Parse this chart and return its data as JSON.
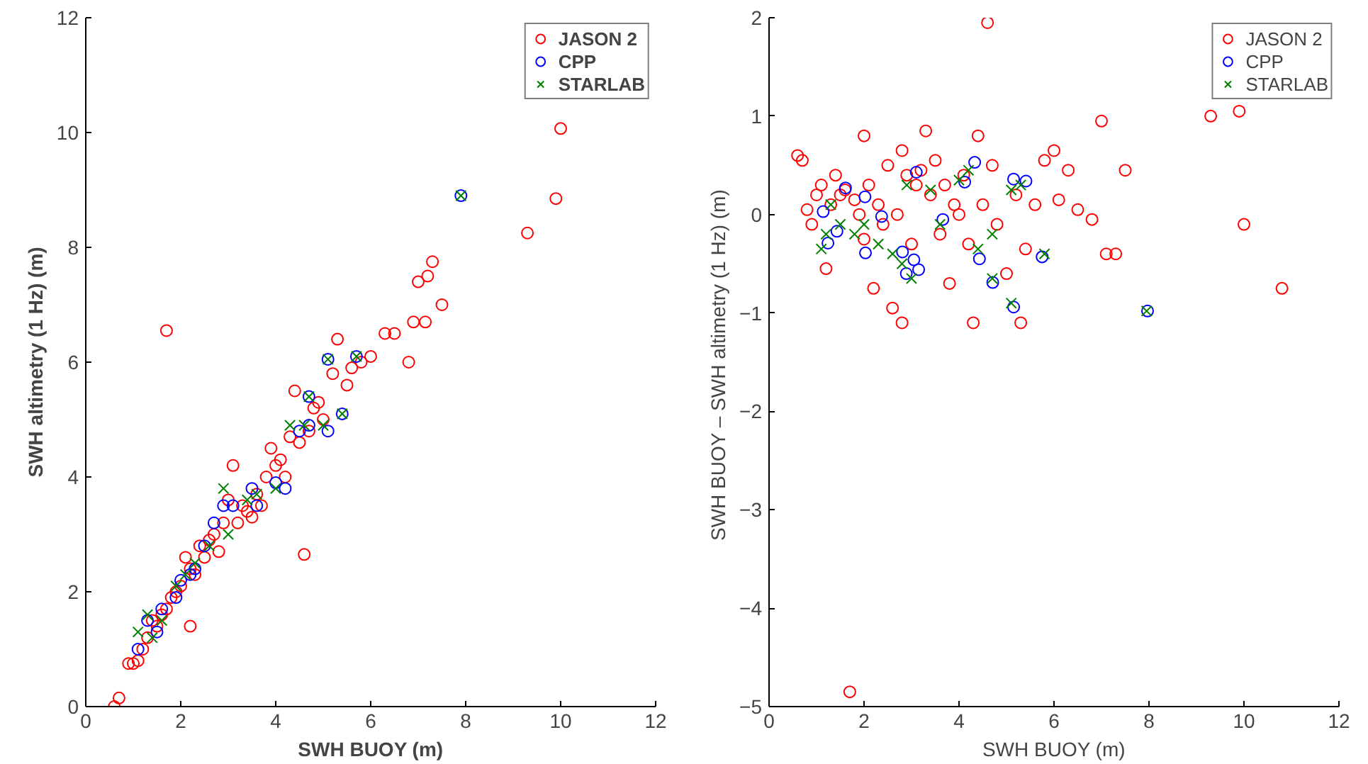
{
  "chart_data": [
    {
      "type": "scatter",
      "xlabel": "SWH BUOY (m)",
      "ylabel": "SWH altimetry (1 Hz) (m)",
      "xlim": [
        0,
        12
      ],
      "ylim": [
        0,
        12
      ],
      "xticks": [
        0,
        2,
        4,
        6,
        8,
        10,
        12
      ],
      "yticks": [
        0,
        2,
        4,
        6,
        8,
        10,
        12
      ],
      "grid": false,
      "legend": "top right",
      "series": [
        {
          "name": "JASON 2",
          "color": "#ff0000",
          "marker": "circle",
          "x": [
            0.6,
            0.7,
            0.9,
            1.0,
            1.1,
            1.2,
            1.3,
            1.4,
            1.5,
            1.6,
            1.7,
            1.8,
            1.7,
            1.9,
            2.0,
            2.1,
            2.2,
            2.2,
            2.3,
            2.4,
            2.5,
            2.6,
            2.7,
            2.8,
            2.9,
            3.0,
            3.1,
            3.2,
            3.3,
            3.4,
            3.5,
            3.6,
            3.7,
            3.8,
            3.9,
            4.0,
            4.1,
            4.2,
            4.3,
            4.4,
            4.5,
            4.6,
            4.7,
            4.8,
            4.9,
            5.0,
            5.2,
            5.3,
            5.5,
            5.6,
            5.8,
            6.0,
            6.3,
            6.5,
            6.8,
            6.9,
            7.0,
            7.15,
            7.2,
            7.3,
            7.5,
            9.3,
            9.9,
            10.0
          ],
          "values": [
            0.0,
            0.15,
            0.75,
            0.75,
            0.8,
            1.0,
            1.2,
            1.5,
            1.4,
            1.6,
            1.7,
            1.9,
            6.55,
            2.0,
            2.1,
            2.6,
            2.4,
            1.4,
            2.3,
            2.8,
            2.6,
            2.9,
            3.0,
            2.7,
            3.2,
            3.6,
            4.2,
            3.2,
            3.5,
            3.4,
            3.3,
            3.7,
            3.5,
            4.0,
            4.5,
            4.2,
            4.3,
            4.0,
            4.7,
            5.5,
            4.6,
            2.65,
            4.8,
            5.2,
            5.3,
            5.0,
            5.8,
            6.4,
            5.6,
            5.9,
            6.0,
            6.1,
            6.5,
            6.5,
            6.0,
            6.7,
            7.4,
            6.7,
            7.5,
            7.75,
            7.0,
            8.25,
            8.85,
            10.07
          ]
        },
        {
          "name": "CPP",
          "color": "#0000ff",
          "marker": "circle",
          "x": [
            1.1,
            1.3,
            1.5,
            1.6,
            1.9,
            2.0,
            2.2,
            2.3,
            2.5,
            2.7,
            2.9,
            3.1,
            3.5,
            3.6,
            4.0,
            4.2,
            4.5,
            4.7,
            4.7,
            5.1,
            5.1,
            5.4,
            5.7,
            7.9
          ],
          "values": [
            1.0,
            1.5,
            1.3,
            1.7,
            1.9,
            2.2,
            2.3,
            2.4,
            2.8,
            3.2,
            3.5,
            3.5,
            3.8,
            3.5,
            3.9,
            3.8,
            4.8,
            4.9,
            5.4,
            4.8,
            6.05,
            5.1,
            6.1,
            8.9
          ]
        },
        {
          "name": "STARLAB",
          "color": "#008000",
          "marker": "cross",
          "x": [
            1.1,
            1.3,
            1.4,
            1.6,
            1.9,
            2.1,
            2.3,
            2.6,
            2.9,
            3.0,
            3.4,
            3.6,
            4.0,
            4.3,
            4.6,
            4.7,
            5.0,
            5.1,
            5.4,
            5.7,
            7.9
          ],
          "values": [
            1.3,
            1.6,
            1.2,
            1.5,
            2.1,
            2.3,
            2.5,
            2.8,
            3.8,
            3.0,
            3.6,
            3.7,
            3.8,
            4.9,
            4.9,
            5.4,
            4.9,
            6.05,
            5.1,
            6.1,
            8.9
          ]
        }
      ]
    },
    {
      "type": "scatter",
      "xlabel": "SWH BUOY (m)",
      "ylabel": "SWH BUOY – SWH altimetry  (1 Hz) (m)",
      "xlim": [
        0,
        12
      ],
      "ylim": [
        -5,
        2
      ],
      "xticks": [
        0,
        2,
        4,
        6,
        8,
        10,
        12
      ],
      "yticks": [
        {
          "value": -5,
          "label": "−5"
        },
        {
          "value": -4,
          "label": "−4"
        },
        {
          "value": -3,
          "label": "−3"
        },
        {
          "value": -2,
          "label": "−2"
        },
        {
          "value": -1,
          "label": "−1"
        },
        0,
        1,
        2
      ],
      "grid": false,
      "legend": "top right",
      "series": [
        {
          "name": "JASON 2",
          "color": "#ff0000",
          "marker": "circle",
          "x": [
            0.6,
            0.7,
            0.8,
            0.9,
            1.0,
            1.1,
            1.2,
            1.3,
            1.4,
            1.5,
            1.6,
            1.7,
            1.8,
            1.9,
            2.0,
            2.0,
            2.1,
            2.2,
            2.3,
            2.4,
            2.5,
            2.6,
            2.7,
            2.8,
            2.8,
            2.9,
            3.0,
            3.1,
            3.2,
            3.3,
            3.4,
            3.5,
            3.6,
            3.7,
            3.8,
            3.9,
            4.0,
            4.1,
            4.2,
            4.3,
            4.4,
            4.5,
            4.6,
            4.7,
            4.8,
            5.0,
            5.2,
            5.3,
            5.4,
            5.6,
            5.8,
            6.0,
            6.1,
            6.3,
            6.5,
            6.8,
            7.0,
            7.1,
            7.3,
            7.5,
            9.3,
            9.9,
            10.0,
            10.8
          ],
          "values": [
            0.6,
            0.55,
            0.05,
            -0.1,
            0.2,
            0.3,
            -0.55,
            0.1,
            0.4,
            0.2,
            0.25,
            -4.85,
            0.15,
            0.0,
            -0.25,
            0.8,
            0.3,
            -0.75,
            0.1,
            -0.1,
            0.5,
            -0.95,
            0.0,
            0.65,
            -1.1,
            0.4,
            -0.3,
            0.3,
            0.45,
            0.85,
            0.2,
            0.55,
            -0.2,
            0.3,
            -0.7,
            0.1,
            0.0,
            0.4,
            -0.3,
            -1.1,
            0.8,
            0.1,
            1.95,
            0.5,
            -0.1,
            -0.6,
            0.2,
            -1.1,
            -0.35,
            0.1,
            0.55,
            0.65,
            0.15,
            0.45,
            0.05,
            -0.05,
            0.95,
            -0.4,
            -0.4,
            0.45,
            1.0,
            1.05,
            -0.1,
            -0.75
          ]
        },
        {
          "name": "CPP",
          "color": "#0000ff",
          "marker": "circle",
          "x": [
            1.14,
            1.24,
            1.43,
            1.61,
            2.02,
            2.03,
            2.37,
            2.81,
            2.89,
            3.05,
            3.1,
            3.15,
            3.66,
            4.12,
            4.33,
            4.43,
            4.71,
            5.15,
            5.15,
            5.41,
            5.75,
            7.97
          ],
          "values": [
            0.03,
            -0.29,
            -0.17,
            0.27,
            0.18,
            -0.39,
            -0.02,
            -0.38,
            -0.6,
            -0.46,
            0.43,
            -0.56,
            -0.05,
            0.33,
            0.53,
            -0.45,
            -0.69,
            0.36,
            -0.94,
            0.34,
            -0.43,
            -0.98
          ]
        },
        {
          "name": "STARLAB",
          "color": "#008000",
          "marker": "cross",
          "x": [
            1.1,
            1.2,
            1.3,
            1.5,
            1.8,
            2.0,
            2.3,
            2.6,
            2.8,
            3.0,
            2.9,
            3.4,
            3.6,
            4.0,
            4.2,
            4.4,
            4.7,
            4.7,
            5.1,
            5.3,
            5.1,
            5.8,
            7.95
          ],
          "values": [
            -0.35,
            -0.2,
            0.1,
            -0.1,
            -0.2,
            -0.1,
            -0.3,
            -0.4,
            -0.5,
            -0.65,
            0.3,
            0.25,
            -0.1,
            0.35,
            0.45,
            -0.35,
            -0.65,
            -0.2,
            0.25,
            0.3,
            -0.9,
            -0.4,
            -0.98
          ]
        }
      ]
    }
  ]
}
